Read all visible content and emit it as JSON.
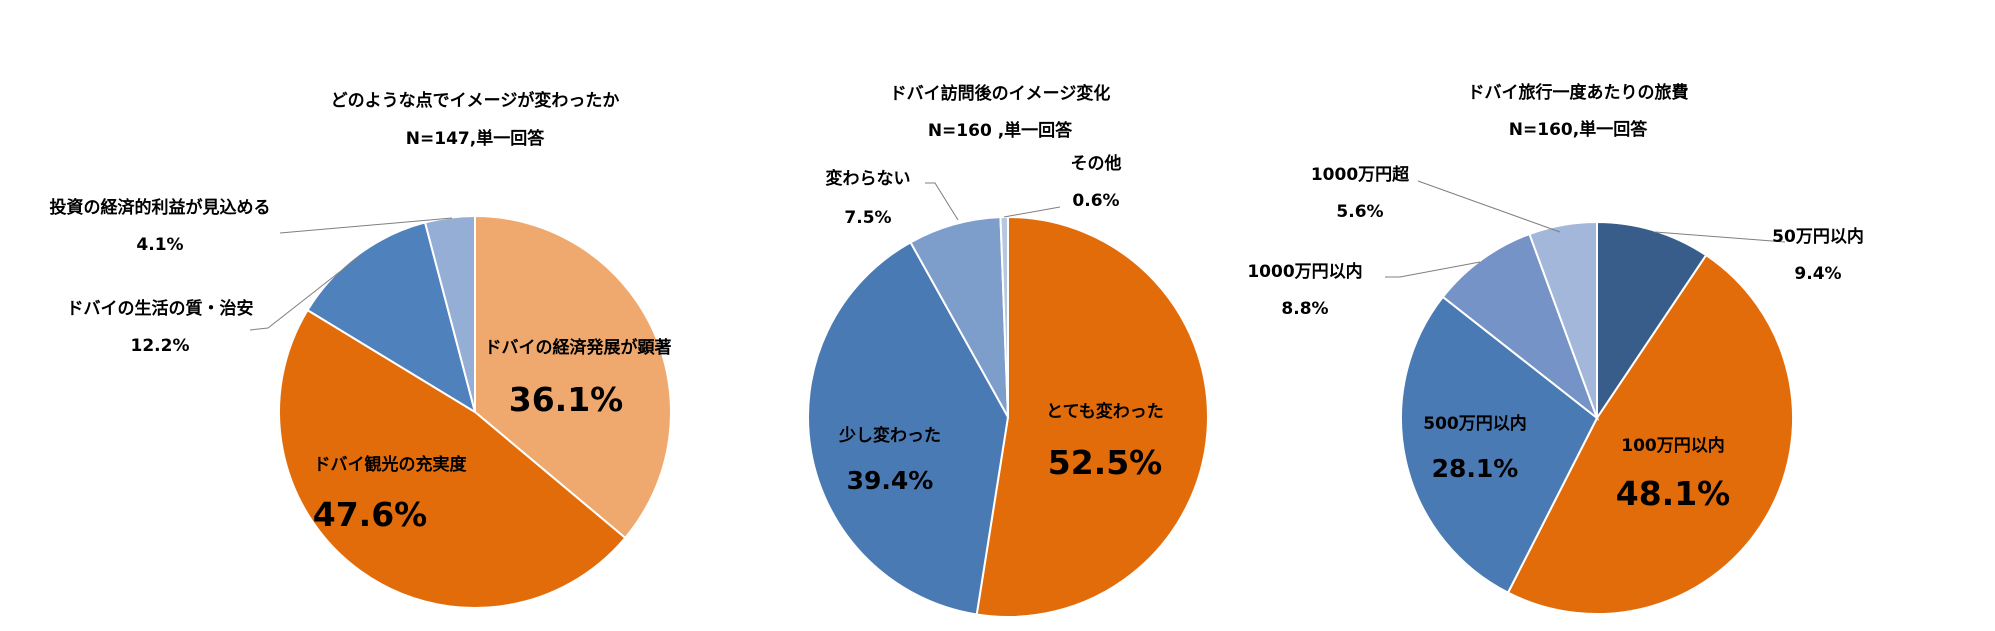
{
  "chart_data": [
    {
      "type": "pie",
      "title": "どのような点でイメージが変わったか",
      "subtitle": "N=147,単一回答",
      "slices": [
        {
          "label": "ドバイの経済発展が顕著",
          "value": 36.1,
          "value_text": "36.1%",
          "color": "#EFA96E"
        },
        {
          "label": "ドバイ観光の充実度",
          "value": 47.6,
          "value_text": "47.6%",
          "color": "#E36C0A"
        },
        {
          "label": "ドバイの生活の質・治安",
          "value": 12.2,
          "value_text": "12.2%",
          "color": "#4F81BD"
        },
        {
          "label": "投資の経済的利益が見込める",
          "value": 4.1,
          "value_text": "4.1%",
          "color": "#95AED6"
        }
      ]
    },
    {
      "type": "pie",
      "title": "ドバイ訪問後のイメージ変化",
      "subtitle": "N=160 ,単一回答",
      "slices": [
        {
          "label": "とても変わった",
          "value": 52.5,
          "value_text": "52.5%",
          "color": "#E36C0A"
        },
        {
          "label": "少し変わった",
          "value": 39.4,
          "value_text": "39.4%",
          "color": "#4A7AB4"
        },
        {
          "label": "変わらない",
          "value": 7.5,
          "value_text": "7.5%",
          "color": "#7D9DCA"
        },
        {
          "label": "その他",
          "value": 0.6,
          "value_text": "0.6%",
          "color": "#B8C7E0"
        }
      ]
    },
    {
      "type": "pie",
      "title": "ドバイ旅行一度あたりの旅費",
      "subtitle": "N=160,単一回答",
      "slices": [
        {
          "label": "50万円以内",
          "value": 9.4,
          "value_text": "9.4%",
          "color": "#385D8A"
        },
        {
          "label": "100万円以内",
          "value": 48.1,
          "value_text": "48.1%",
          "color": "#E36C0A"
        },
        {
          "label": "500万円以内",
          "value": 28.1,
          "value_text": "28.1%",
          "color": "#4A7AB4"
        },
        {
          "label": "1000万円以内",
          "value": 8.8,
          "value_text": "8.8%",
          "color": "#7593C6"
        },
        {
          "label": "1000万円超",
          "value": 5.6,
          "value_text": "5.6%",
          "color": "#A3B7DA"
        }
      ]
    }
  ]
}
